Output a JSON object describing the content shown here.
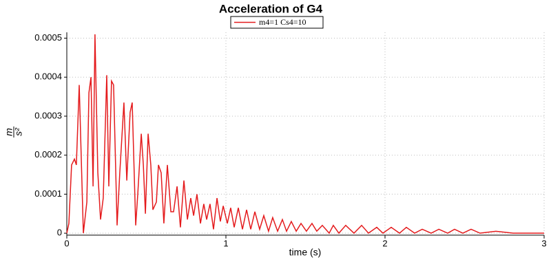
{
  "chart_data": {
    "type": "line",
    "title": "Acceleration of G4",
    "xlabel": "time (s)",
    "ylabel": {
      "numerator": "m",
      "denominator": "s²"
    },
    "xlim": [
      0,
      3
    ],
    "xticks": [
      0,
      1,
      2,
      3
    ],
    "ylim": [
      -5e-06,
      0.000515
    ],
    "yticks": [
      0,
      0.0001,
      0.0002,
      0.0003,
      0.0004,
      0.0005
    ],
    "grid": true,
    "legend": "top",
    "x": [
      0,
      0.013,
      0.03,
      0.048,
      0.06,
      0.078,
      0.104,
      0.126,
      0.139,
      0.152,
      0.165,
      0.177,
      0.195,
      0.212,
      0.229,
      0.251,
      0.264,
      0.281,
      0.294,
      0.316,
      0.333,
      0.359,
      0.377,
      0.398,
      0.411,
      0.433,
      0.446,
      0.468,
      0.481,
      0.494,
      0.511,
      0.528,
      0.541,
      0.563,
      0.576,
      0.593,
      0.61,
      0.632,
      0.654,
      0.671,
      0.693,
      0.714,
      0.736,
      0.758,
      0.779,
      0.797,
      0.818,
      0.84,
      0.861,
      0.879,
      0.9,
      0.922,
      0.944,
      0.965,
      0.983,
      1.009,
      1.03,
      1.052,
      1.078,
      1.104,
      1.13,
      1.156,
      1.182,
      1.212,
      1.238,
      1.268,
      1.294,
      1.325,
      1.355,
      1.381,
      1.411,
      1.442,
      1.472,
      1.506,
      1.541,
      1.571,
      1.606,
      1.649,
      1.675,
      1.71,
      1.753,
      1.805,
      1.853,
      1.896,
      1.948,
      1.987,
      2.039,
      2.091,
      2.134,
      2.186,
      2.234,
      2.29,
      2.338,
      2.394,
      2.437,
      2.489,
      2.541,
      2.597,
      2.697,
      2.805,
      2.913,
      3.0
    ],
    "series": [
      {
        "name": "m4=1 Cs4=10",
        "color": "#e41a1c",
        "values": [
          0,
          2.5e-05,
          0.000175,
          0.00019,
          0.000175,
          0.00038,
          0,
          8e-05,
          0.00036,
          0.0004,
          0.00012,
          0.00051,
          0.000155,
          3.5e-05,
          9e-05,
          0.000405,
          0.00012,
          0.00039,
          0.00038,
          2e-05,
          0.000155,
          0.000335,
          0.000135,
          0.00031,
          0.000335,
          2e-05,
          0.0001,
          0.000255,
          0.000175,
          5e-05,
          0.000255,
          0.000175,
          6e-05,
          8e-05,
          0.000175,
          0.000155,
          2.5e-05,
          0.000175,
          5.5e-05,
          5.5e-05,
          0.00012,
          1.5e-05,
          0.000135,
          3.5e-05,
          9e-05,
          4.5e-05,
          0.0001,
          2.5e-05,
          7.5e-05,
          3.5e-05,
          7.5e-05,
          1e-05,
          9e-05,
          3e-05,
          7e-05,
          2.5e-05,
          6.5e-05,
          1.5e-05,
          6.5e-05,
          1e-05,
          6e-05,
          1e-05,
          5.5e-05,
          1e-05,
          4.5e-05,
          5e-06,
          4e-05,
          5e-06,
          3.5e-05,
          5e-06,
          3e-05,
          5e-06,
          2.5e-05,
          5e-06,
          2.5e-05,
          5e-06,
          2e-05,
          0,
          2e-05,
          0,
          2e-05,
          0,
          2e-05,
          0,
          1.5e-05,
          0,
          1.5e-05,
          0,
          1.5e-05,
          0,
          1e-05,
          0,
          1e-05,
          0,
          1e-05,
          0,
          1e-05,
          0,
          5e-06,
          0,
          0,
          0
        ]
      }
    ]
  }
}
